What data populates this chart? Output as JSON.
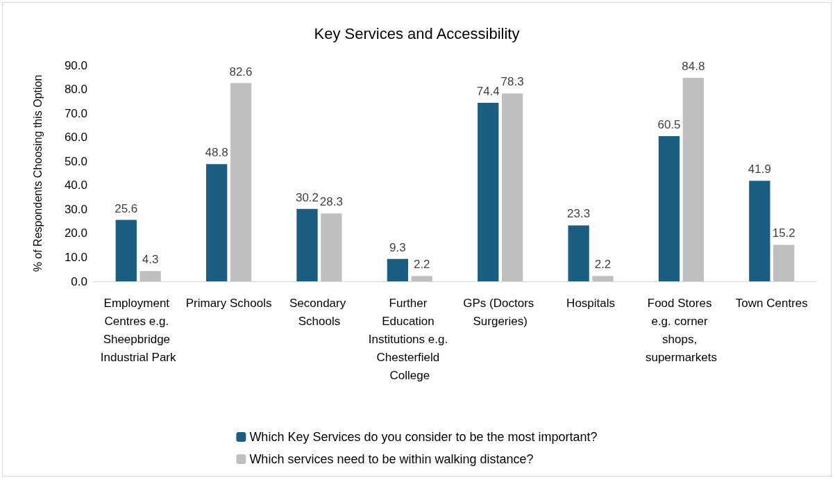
{
  "chart_data": {
    "type": "bar",
    "title": "Key Services and Accessibility",
    "ylabel": "% of Respondents Choosing this Option",
    "categories": [
      "Employment Centres e.g. Sheepbridge Industrial Park",
      "Primary Schools",
      "Secondary Schools",
      "Further Education Institutions e.g. Chesterfield College",
      "GPs (Doctors Surgeries)",
      "Hospitals",
      "Food Stores e.g. corner shops, supermarkets",
      "Town Centres"
    ],
    "series": [
      {
        "name": "Which Key Services do you consider to be the most important?",
        "color": "#1b5e82",
        "values": [
          25.6,
          48.8,
          30.2,
          9.3,
          74.4,
          23.3,
          60.5,
          41.9
        ]
      },
      {
        "name": "Which services need to be within walking distance?",
        "color": "#bfbfbf",
        "values": [
          4.3,
          82.6,
          28.3,
          2.2,
          78.3,
          2.2,
          84.8,
          15.2
        ]
      }
    ],
    "ylim": [
      0,
      90
    ],
    "yticks": [
      {
        "value": 0,
        "label": "0.0"
      },
      {
        "value": 10,
        "label": "10.0"
      },
      {
        "value": 20,
        "label": "20.0"
      },
      {
        "value": 30,
        "label": "30.0"
      },
      {
        "value": 40,
        "label": "40.0"
      },
      {
        "value": 50,
        "label": "50.0"
      },
      {
        "value": 60,
        "label": "60.0"
      },
      {
        "value": 70,
        "label": "70.0"
      },
      {
        "value": 80,
        "label": "80.0"
      },
      {
        "value": 90,
        "label": "90.0"
      }
    ],
    "grid": false,
    "legend": "bottom",
    "data_labels": true
  }
}
